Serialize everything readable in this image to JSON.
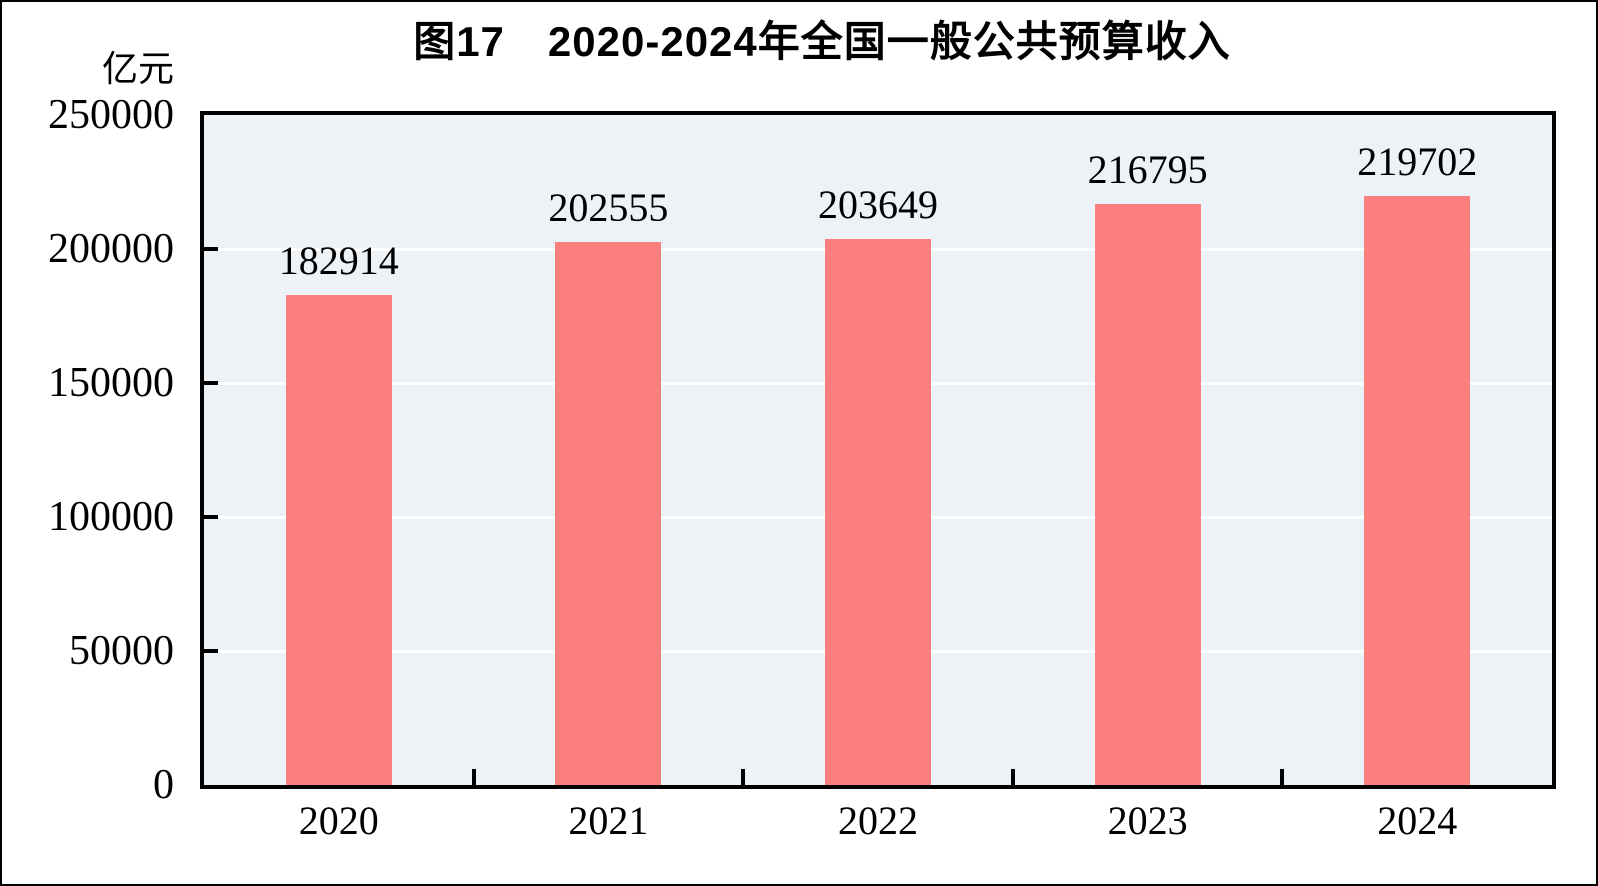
{
  "figure": {
    "title": "图17　2020-2024年全国一般公共预算收入",
    "unit_label": "亿元"
  },
  "chart_data": {
    "type": "bar",
    "title": "图17　2020-2024年全国一般公共预算收入",
    "xlabel": "",
    "ylabel": "亿元",
    "categories": [
      "2020",
      "2021",
      "2022",
      "2023",
      "2024"
    ],
    "values": [
      182914,
      202555,
      203649,
      216795,
      219702
    ],
    "value_labels": [
      "182914",
      "202555",
      "203649",
      "216795",
      "219702"
    ],
    "ylim": [
      0,
      250000
    ],
    "y_ticks": [
      0,
      50000,
      100000,
      150000,
      200000,
      250000
    ],
    "y_tick_labels": [
      "0",
      "50000",
      "100000",
      "150000",
      "200000",
      "250000"
    ],
    "grid": true,
    "legend_position": "none",
    "colors": {
      "bar": "#FC7F7F",
      "plot_background": "#ECF2F6",
      "gridline": "#FFFFFF",
      "axis": "#000000",
      "text": "#000000"
    }
  }
}
